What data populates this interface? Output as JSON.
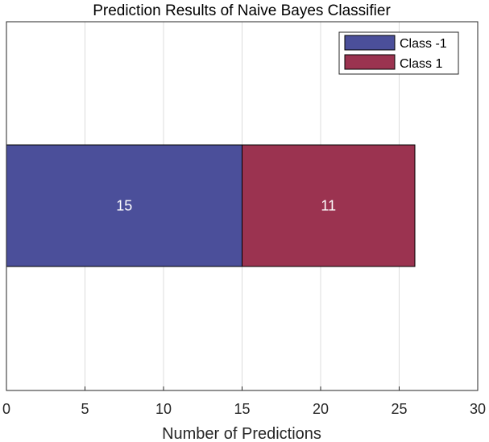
{
  "chart_data": {
    "type": "bar",
    "orientation": "horizontal",
    "stacked": true,
    "title": "Prediction Results of Naive Bayes Classifier",
    "xlabel": "Number of Predictions",
    "ylabel": "",
    "xlim": [
      0,
      30
    ],
    "xticks": [
      0,
      5,
      10,
      15,
      20,
      25,
      30
    ],
    "grid": "vertical",
    "legend_position": "top-right",
    "series": [
      {
        "name": "Class -1",
        "values": [
          15
        ],
        "color": "#4b4f9a",
        "data_label": "15"
      },
      {
        "name": "Class 1",
        "values": [
          11
        ],
        "color": "#9b3350",
        "data_label": "11"
      }
    ]
  }
}
